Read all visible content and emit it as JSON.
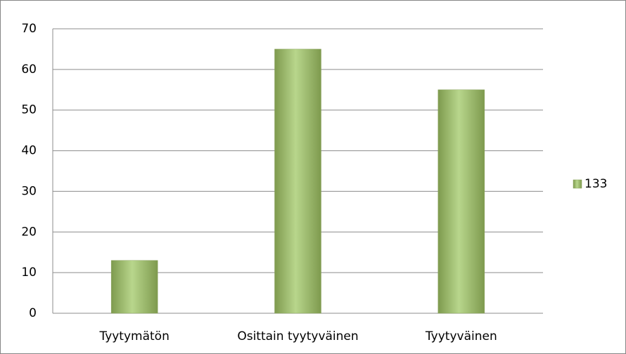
{
  "chart_data": {
    "type": "bar",
    "categories": [
      "Tyytymätön",
      "Osittain tyytyväinen",
      "Tyytyväinen"
    ],
    "series": [
      {
        "name": "133",
        "color": "#b8d68c",
        "values": [
          13,
          65,
          55
        ]
      }
    ],
    "ylim": [
      0,
      70
    ],
    "yticks": [
      0,
      10,
      20,
      30,
      40,
      50,
      60,
      70
    ],
    "grid": true,
    "legend": "right"
  }
}
